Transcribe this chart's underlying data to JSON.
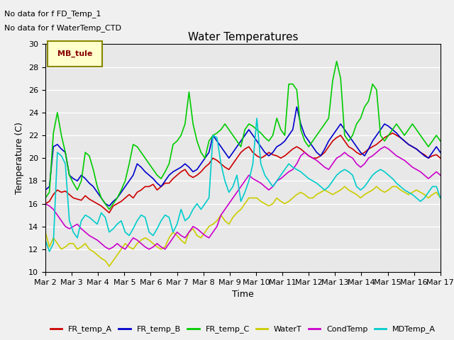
{
  "title": "Water Temperatures",
  "ylabel": "Temperature (C)",
  "xlabel": "Time",
  "annotation1": "No data for f FD_Temp_1",
  "annotation2": "No data for f WaterTemp_CTD",
  "legend_label": "MB_tule",
  "ylim": [
    10,
    30
  ],
  "series": {
    "FR_temp_A": {
      "color": "#cc0000",
      "lw": 1.2,
      "values": [
        16.0,
        16.2,
        16.8,
        17.2,
        17.0,
        17.1,
        16.8,
        16.5,
        16.4,
        16.3,
        16.7,
        16.4,
        16.2,
        16.0,
        15.8,
        15.5,
        15.2,
        15.8,
        16.0,
        16.2,
        16.5,
        16.8,
        16.5,
        17.0,
        17.2,
        17.5,
        17.5,
        17.7,
        17.2,
        17.5,
        17.8,
        17.8,
        18.2,
        18.5,
        18.8,
        19.0,
        18.5,
        18.3,
        18.5,
        18.8,
        19.2,
        19.5,
        20.0,
        19.8,
        19.5,
        19.2,
        19.0,
        19.5,
        20.0,
        20.5,
        20.8,
        21.0,
        20.5,
        20.2,
        20.0,
        20.2,
        20.5,
        20.3,
        20.2,
        20.0,
        20.2,
        20.5,
        20.8,
        21.0,
        20.8,
        20.5,
        20.2,
        20.0,
        20.0,
        20.2,
        20.5,
        21.0,
        21.5,
        21.8,
        22.0,
        21.5,
        21.0,
        20.8,
        20.5,
        20.3,
        20.5,
        20.8,
        21.0,
        21.2,
        21.5,
        21.8,
        22.0,
        22.2,
        22.0,
        21.8,
        21.5,
        21.2,
        21.0,
        20.8,
        20.5,
        20.3,
        20.0,
        20.2,
        20.3,
        20.0
      ]
    },
    "FR_temp_B": {
      "color": "#0000cc",
      "lw": 1.2,
      "values": [
        17.2,
        17.5,
        21.0,
        21.2,
        20.8,
        20.5,
        18.5,
        18.2,
        18.0,
        18.5,
        18.2,
        17.8,
        17.5,
        17.0,
        16.5,
        16.0,
        15.8,
        16.2,
        16.5,
        17.0,
        17.5,
        18.0,
        18.5,
        19.5,
        19.2,
        18.8,
        18.5,
        18.2,
        17.8,
        17.5,
        18.0,
        18.5,
        18.8,
        19.0,
        19.2,
        19.5,
        19.2,
        18.8,
        19.0,
        19.5,
        20.0,
        20.5,
        22.0,
        21.5,
        21.0,
        20.5,
        20.0,
        20.5,
        21.0,
        21.5,
        22.0,
        22.5,
        22.0,
        21.5,
        21.0,
        20.5,
        20.2,
        20.5,
        21.0,
        21.2,
        21.5,
        22.0,
        22.5,
        24.5,
        23.0,
        22.0,
        21.5,
        21.0,
        20.5,
        20.2,
        20.8,
        21.5,
        22.0,
        22.5,
        23.0,
        22.5,
        22.0,
        21.5,
        21.0,
        20.5,
        20.2,
        20.8,
        21.5,
        22.0,
        22.5,
        23.0,
        22.8,
        22.5,
        22.2,
        21.8,
        21.5,
        21.2,
        21.0,
        20.8,
        20.5,
        20.2,
        20.0,
        20.5,
        21.0,
        20.5
      ]
    },
    "FR_temp_C": {
      "color": "#00cc00",
      "lw": 1.2,
      "values": [
        16.5,
        17.0,
        22.2,
        24.0,
        22.0,
        20.5,
        18.5,
        17.8,
        17.2,
        18.0,
        20.5,
        20.2,
        19.0,
        17.5,
        16.5,
        16.0,
        15.5,
        16.0,
        16.5,
        17.2,
        18.0,
        19.5,
        21.2,
        21.0,
        20.5,
        20.0,
        19.5,
        19.0,
        18.5,
        18.2,
        18.8,
        19.5,
        21.2,
        21.5,
        22.0,
        23.0,
        25.8,
        23.0,
        21.5,
        20.5,
        20.0,
        21.5,
        22.0,
        22.2,
        22.5,
        23.0,
        22.5,
        22.0,
        21.5,
        21.0,
        22.5,
        23.0,
        22.8,
        22.5,
        22.2,
        21.8,
        21.5,
        22.0,
        23.5,
        22.5,
        22.0,
        26.5,
        26.5,
        26.0,
        22.5,
        21.5,
        21.0,
        21.5,
        22.0,
        22.5,
        23.0,
        23.5,
        26.8,
        28.5,
        27.0,
        22.0,
        21.5,
        22.0,
        23.0,
        23.5,
        24.5,
        25.0,
        26.5,
        26.0,
        22.0,
        21.5,
        22.0,
        22.5,
        23.0,
        22.5,
        22.0,
        22.5,
        23.0,
        22.5,
        22.0,
        21.5,
        21.0,
        21.5,
        22.0,
        21.5
      ]
    },
    "WaterT": {
      "color": "#cccc00",
      "lw": 1.2,
      "values": [
        13.5,
        12.2,
        13.0,
        12.5,
        12.0,
        12.2,
        12.5,
        12.5,
        12.0,
        12.2,
        12.5,
        12.0,
        11.8,
        11.5,
        11.2,
        11.0,
        10.5,
        11.0,
        11.5,
        12.0,
        12.5,
        12.2,
        12.0,
        12.5,
        12.8,
        13.0,
        12.8,
        12.5,
        12.2,
        12.0,
        12.2,
        13.0,
        13.5,
        13.2,
        12.8,
        12.5,
        13.5,
        13.8,
        13.2,
        13.0,
        13.5,
        14.0,
        14.2,
        14.5,
        15.0,
        14.5,
        14.2,
        14.8,
        15.2,
        15.5,
        16.0,
        16.5,
        16.5,
        16.5,
        16.2,
        16.0,
        15.8,
        16.0,
        16.5,
        16.2,
        16.0,
        16.2,
        16.5,
        16.8,
        17.0,
        16.8,
        16.5,
        16.5,
        16.8,
        17.0,
        17.2,
        17.0,
        16.8,
        17.0,
        17.2,
        17.5,
        17.2,
        17.0,
        16.8,
        16.5,
        16.8,
        17.0,
        17.2,
        17.5,
        17.2,
        17.0,
        17.2,
        17.5,
        17.5,
        17.2,
        17.0,
        16.8,
        17.0,
        17.2,
        17.0,
        16.8,
        16.5,
        16.8,
        17.0,
        16.5
      ]
    },
    "CondTemp": {
      "color": "#cc00cc",
      "lw": 1.2,
      "values": [
        16.0,
        15.8,
        15.5,
        15.0,
        14.5,
        14.0,
        13.8,
        14.0,
        14.2,
        13.8,
        13.5,
        13.2,
        13.0,
        12.8,
        12.5,
        12.2,
        12.0,
        12.2,
        12.5,
        12.2,
        12.0,
        12.5,
        13.0,
        12.8,
        12.5,
        12.2,
        12.0,
        12.2,
        12.5,
        12.2,
        12.0,
        12.5,
        13.0,
        13.5,
        13.2,
        13.0,
        13.5,
        14.0,
        13.8,
        13.5,
        13.2,
        13.0,
        13.5,
        14.0,
        15.0,
        15.5,
        16.0,
        16.5,
        17.0,
        17.5,
        18.0,
        18.5,
        18.2,
        18.0,
        17.8,
        17.5,
        17.2,
        17.5,
        18.0,
        18.2,
        18.5,
        18.8,
        19.0,
        19.5,
        20.2,
        20.5,
        20.2,
        20.0,
        19.8,
        19.5,
        19.2,
        19.0,
        19.5,
        20.0,
        20.2,
        20.5,
        20.2,
        20.0,
        19.5,
        19.2,
        19.5,
        20.0,
        20.2,
        20.5,
        20.8,
        21.0,
        20.8,
        20.5,
        20.2,
        20.0,
        19.8,
        19.5,
        19.2,
        19.0,
        18.8,
        18.5,
        18.2,
        18.5,
        18.8,
        18.5
      ]
    },
    "MDTemp_A": {
      "color": "#00cccc",
      "lw": 1.2,
      "values": [
        12.8,
        11.8,
        12.5,
        20.5,
        20.2,
        19.5,
        14.5,
        13.5,
        13.0,
        14.5,
        15.0,
        14.8,
        14.5,
        14.2,
        15.2,
        14.8,
        13.5,
        13.8,
        14.2,
        14.5,
        13.5,
        13.2,
        13.8,
        14.5,
        15.0,
        14.8,
        13.5,
        13.2,
        13.8,
        14.5,
        15.0,
        14.8,
        13.5,
        14.2,
        15.5,
        14.5,
        14.8,
        15.5,
        16.0,
        15.5,
        16.0,
        16.5,
        22.0,
        21.8,
        19.5,
        18.0,
        17.0,
        17.5,
        18.5,
        16.2,
        17.0,
        18.0,
        19.5,
        23.5,
        19.5,
        18.5,
        18.0,
        17.5,
        18.0,
        18.5,
        19.0,
        19.5,
        19.2,
        19.0,
        18.8,
        18.5,
        18.2,
        18.0,
        17.8,
        17.5,
        17.2,
        17.5,
        18.0,
        18.5,
        18.8,
        19.0,
        18.8,
        18.5,
        17.5,
        17.2,
        17.5,
        18.0,
        18.5,
        18.8,
        19.0,
        18.8,
        18.5,
        18.2,
        17.8,
        17.5,
        17.2,
        17.0,
        16.8,
        16.5,
        16.2,
        16.5,
        17.0,
        17.5,
        17.5,
        16.5
      ]
    }
  },
  "xtick_labels": [
    "Mar 2",
    "Mar 3",
    "Mar 4",
    "Mar 5",
    "Mar 6",
    "Mar 7",
    "Mar 8",
    "Mar 9",
    "Mar 10",
    "Mar 11",
    "Mar 12",
    "Mar 13",
    "Mar 14",
    "Mar 15",
    "Mar 16",
    "Mar 17"
  ],
  "bg_color": "#e8e8e8",
  "fig_bg_color": "#f0f0f0",
  "grid_color": "#ffffff",
  "title_fontsize": 11,
  "axis_label_fontsize": 9,
  "tick_fontsize": 8
}
